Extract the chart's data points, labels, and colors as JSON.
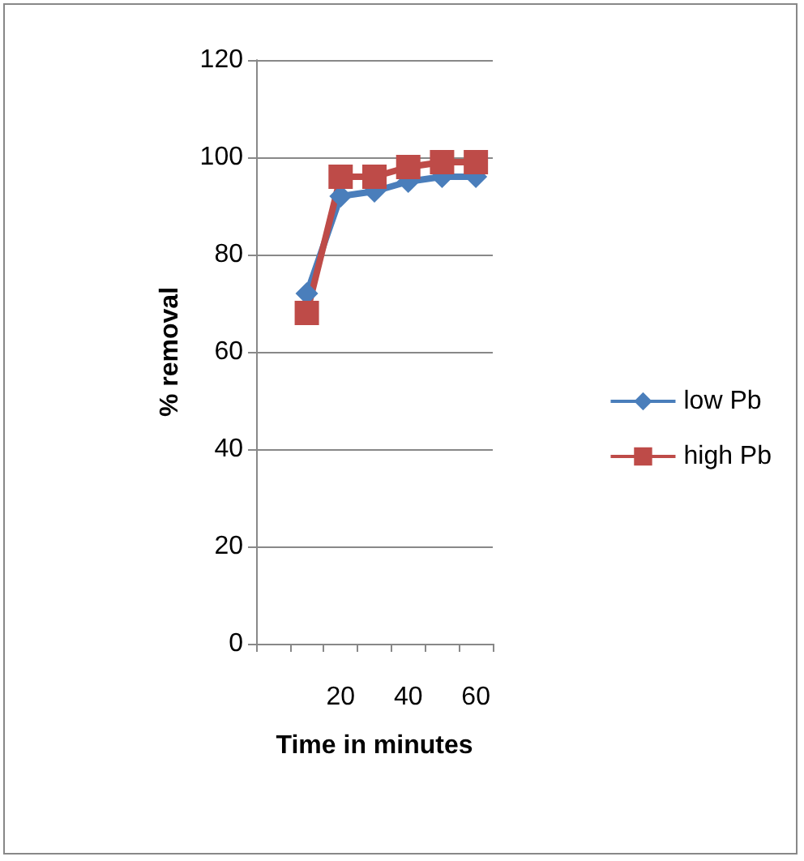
{
  "chart_data": {
    "type": "line",
    "xlabel": "Time in minutes",
    "ylabel": "% removal",
    "categories": [
      null,
      null,
      "20",
      null,
      "40",
      null,
      "60"
    ],
    "series": [
      {
        "name": "low Pb",
        "color": "#4a7ebb",
        "marker": "diamond",
        "values": [
          null,
          72,
          92,
          93,
          95,
          96,
          96
        ]
      },
      {
        "name": "high Pb",
        "color": "#be4b48",
        "marker": "square",
        "values": [
          null,
          68,
          96,
          96,
          98,
          99,
          99
        ]
      }
    ],
    "ylim": [
      0,
      120
    ],
    "yticks": [
      0,
      20,
      40,
      60,
      80,
      100,
      120
    ],
    "grid": "y",
    "legend": "right"
  }
}
